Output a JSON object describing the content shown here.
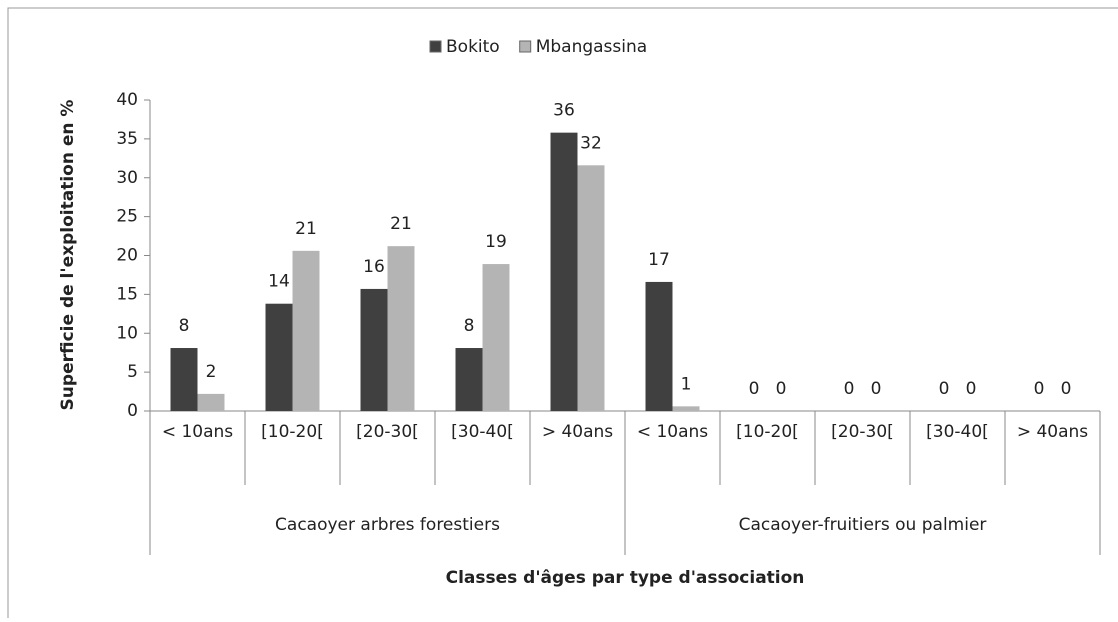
{
  "chart_data": {
    "type": "bar",
    "x_label": "Classes d'âges par type d'association",
    "y_label": "Superficie de l'exploitation en %",
    "categories": [
      "< 10ans",
      "[10-20[",
      "[20-30[",
      "[30-40[",
      "> 40ans",
      "< 10ans",
      "[10-20[",
      "[20-30[",
      "[30-40[",
      "> 40ans"
    ],
    "groups": [
      "Cacaoyer arbres forestiers",
      "Cacaoyer-fruitiers ou palmier"
    ],
    "series": [
      {
        "name": "Bokito",
        "color": "#404040",
        "values": [
          8.1,
          13.8,
          15.7,
          8.1,
          35.8,
          16.6,
          0,
          0,
          0,
          0
        ],
        "value_labels": [
          "8",
          "14",
          "16",
          "8",
          "36",
          "17",
          "0",
          "0",
          "0",
          "0"
        ]
      },
      {
        "name": "Mbangassina",
        "color": "#b4b4b4",
        "values": [
          2.2,
          20.6,
          21.2,
          18.9,
          31.6,
          0.6,
          0,
          0,
          0,
          0
        ],
        "value_labels": [
          "2",
          "21",
          "21",
          "19",
          "32",
          "1",
          "0",
          "0",
          "0",
          "0"
        ]
      }
    ],
    "ylim": [
      0,
      40
    ],
    "yticks": [
      0,
      5,
      10,
      15,
      20,
      25,
      30,
      35,
      40
    ],
    "legend": "top"
  }
}
